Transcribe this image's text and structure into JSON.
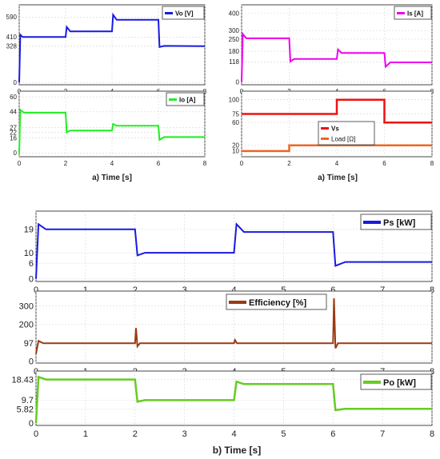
{
  "chart_data": [
    {
      "type": "line",
      "legend": "top-right",
      "xlim": [
        0,
        8
      ],
      "ylim": [
        -20,
        700
      ],
      "x_ticks": [
        0,
        2,
        4,
        6,
        8
      ],
      "y_ticks": [
        0,
        328,
        410,
        590
      ],
      "series": [
        {
          "name": "Vo [V]",
          "color": "#1a1adf",
          "x": [
            0,
            0.05,
            0.15,
            2,
            2.05,
            2.2,
            4,
            4.05,
            4.2,
            6,
            6.05,
            6.25,
            8
          ],
          "y": [
            0,
            430,
            410,
            410,
            500,
            460,
            460,
            610,
            565,
            565,
            320,
            330,
            328
          ]
        }
      ]
    },
    {
      "type": "line",
      "legend": "top-right",
      "xlim": [
        0,
        8
      ],
      "ylim": [
        -15,
        450
      ],
      "x_ticks": [
        0,
        2,
        4,
        6,
        8
      ],
      "y_ticks": [
        0,
        118,
        180,
        250,
        300,
        400
      ],
      "series": [
        {
          "name": "Is [A]",
          "color": "#ee00ee",
          "x": [
            0,
            0.05,
            0.2,
            2,
            2.05,
            2.2,
            4,
            4.05,
            4.2,
            6,
            6.05,
            6.25,
            8
          ],
          "y": [
            0,
            280,
            255,
            255,
            120,
            135,
            135,
            190,
            170,
            170,
            90,
            115,
            115
          ]
        }
      ]
    },
    {
      "type": "line",
      "legend": "top-right",
      "xlim": [
        0,
        8
      ],
      "ylim": [
        -4,
        66
      ],
      "x_ticks": [
        0,
        2,
        4,
        6,
        8
      ],
      "y_ticks": [
        0,
        16,
        22,
        27,
        44,
        60
      ],
      "series": [
        {
          "name": "Io [A]",
          "color": "#22ee22",
          "x": [
            0,
            0.05,
            0.2,
            2,
            2.05,
            2.2,
            4,
            4.05,
            4.2,
            6,
            6.05,
            6.25,
            8
          ],
          "y": [
            0,
            46,
            43,
            43,
            22,
            24,
            24,
            31,
            29,
            29,
            14,
            17,
            17
          ]
        }
      ]
    },
    {
      "type": "line",
      "legend": "center",
      "xlim": [
        0,
        8
      ],
      "ylim": [
        0,
        115
      ],
      "x_ticks": [
        0,
        2,
        4,
        6,
        8
      ],
      "y_ticks": [
        10,
        20,
        60,
        75,
        100
      ],
      "series": [
        {
          "name": "Vs",
          "color": "#ee1111",
          "x": [
            0,
            4,
            4,
            6,
            6,
            8
          ],
          "y": [
            75,
            75,
            100,
            100,
            60,
            60
          ]
        },
        {
          "name": "Load [Ω]",
          "color": "#ee6622",
          "x": [
            0,
            2,
            2,
            8
          ],
          "y": [
            10,
            10,
            20,
            20
          ]
        }
      ]
    },
    {
      "type": "line",
      "legend": "top-right",
      "xlim": [
        0,
        8
      ],
      "ylim": [
        -1,
        26
      ],
      "x_ticks": [
        0,
        1,
        2,
        3,
        4,
        5,
        6,
        7,
        8
      ],
      "y_ticks": [
        0,
        6,
        10,
        19
      ],
      "series": [
        {
          "name": "Ps [kW]",
          "color": "#1a1adf",
          "x": [
            0,
            0.05,
            0.2,
            2,
            2.05,
            2.2,
            4,
            4.05,
            4.2,
            6,
            6.05,
            6.25,
            8
          ],
          "y": [
            0,
            21,
            19,
            19,
            9,
            10,
            10,
            21,
            18,
            18,
            5,
            6.5,
            6.5
          ]
        }
      ]
    },
    {
      "type": "line",
      "legend": "top-right",
      "xlim": [
        0,
        8
      ],
      "ylim": [
        -10,
        380
      ],
      "x_ticks": [
        0,
        1,
        2,
        3,
        4,
        5,
        6,
        7,
        8
      ],
      "y_ticks": [
        0,
        97,
        200,
        300
      ],
      "series": [
        {
          "name": "Efficiency [%]",
          "color": "#9b3a12",
          "x": [
            0,
            0.05,
            0.15,
            2,
            2.02,
            2.05,
            2.1,
            4,
            4.02,
            4.06,
            6,
            6.02,
            6.05,
            6.1,
            8
          ],
          "y": [
            40,
            110,
            97,
            97,
            180,
            80,
            97,
            97,
            115,
            97,
            97,
            340,
            70,
            97,
            97
          ]
        }
      ]
    },
    {
      "type": "line",
      "legend": "top-right",
      "xlim": [
        0,
        8
      ],
      "ylim": [
        -1,
        22
      ],
      "x_ticks": [
        0,
        1,
        2,
        3,
        4,
        5,
        6,
        7,
        8
      ],
      "y_ticks": [
        0,
        5.82,
        9.7,
        18.43
      ],
      "series": [
        {
          "name": "Po [kW]",
          "color": "#66cc22",
          "x": [
            0,
            0.05,
            0.2,
            2,
            2.05,
            2.2,
            4,
            4.05,
            4.2,
            6,
            6.05,
            6.25,
            8
          ],
          "y": [
            0,
            19.5,
            18.43,
            18.43,
            9,
            9.7,
            9.7,
            17.5,
            16.5,
            16.5,
            5.5,
            6,
            6
          ]
        }
      ]
    }
  ],
  "labels": {
    "top_xlabel": "a)  Time [s]",
    "bottom_xlabel": "b) Time [s]"
  }
}
